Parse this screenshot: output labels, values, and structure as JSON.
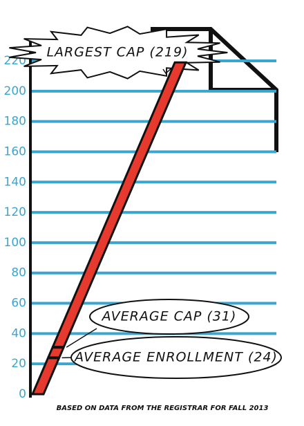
{
  "chart_data": {
    "type": "slanted-bar",
    "values": [
      219,
      31,
      24
    ],
    "value_labels": [
      "LARGEST CAP (219)",
      "AVERAGE CAP (31)",
      "AVERAGE ENROLLMENT (24)"
    ],
    "note": "BASED ON DATA FROM THE REGISTRAR FOR FALL 2013",
    "ylim": [
      0,
      220
    ],
    "yticks": [
      0,
      20,
      40,
      60,
      80,
      100,
      120,
      140,
      160,
      180,
      200,
      220
    ],
    "grid": true,
    "color": "#e63a2e",
    "grid_color": "#3aa6cf"
  }
}
